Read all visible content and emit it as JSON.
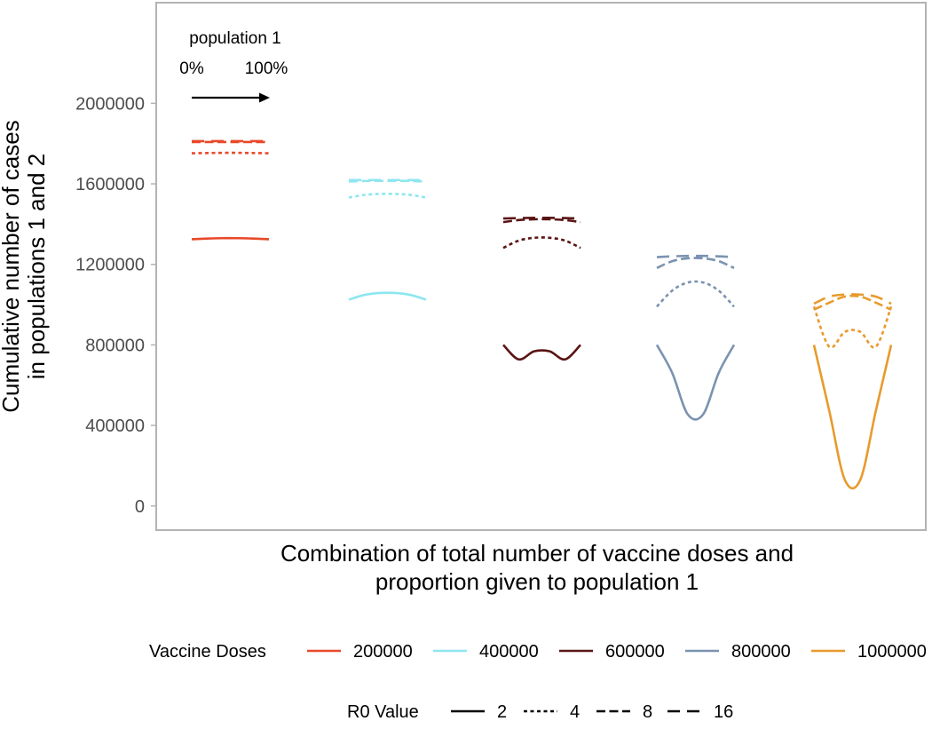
{
  "chart_data": {
    "type": "line",
    "title": "",
    "xlabel_line1": "Combination of total number of vaccine doses and",
    "xlabel_line2": "proportion given to population 1",
    "ylabel_line1": "Cumulative number of cases",
    "ylabel_line2": "in populations 1 and 2",
    "ylim": [
      -120000,
      2500000
    ],
    "yticks": [
      0,
      400000,
      800000,
      1200000,
      1600000,
      2000000
    ],
    "ytick_labels": [
      "0",
      "400000",
      "800000",
      "1200000",
      "1600000",
      "2000000"
    ],
    "grid": false,
    "x_proportion_range": [
      0,
      1
    ],
    "annotation": {
      "title": "population 1",
      "left_label": "0%",
      "right_label": "100%"
    },
    "legend_position": "bottom",
    "legend_color_title": "Vaccine Doses",
    "legend_linetype_title": "R0 Value",
    "r0_values": [
      "2",
      "4",
      "8",
      "16"
    ],
    "groups": [
      {
        "doses": "200000",
        "color": "#E8492A",
        "curves": [
          {
            "r0": "2",
            "y": [
              1325000,
              1328000,
              1330000,
              1330000,
              1328000,
              1325000
            ]
          },
          {
            "r0": "4",
            "y": [
              1752000,
              1753000,
              1754000,
              1754000,
              1753000,
              1752000
            ]
          },
          {
            "r0": "8",
            "y": [
              1808000,
              1808000,
              1808000,
              1808000,
              1808000,
              1808000
            ]
          },
          {
            "r0": "16",
            "y": [
              1812000,
              1812000,
              1812000,
              1812000,
              1812000,
              1812000
            ]
          }
        ]
      },
      {
        "doses": "400000",
        "color": "#8EE6F0",
        "curves": [
          {
            "r0": "2",
            "y": [
              1025000,
              1048000,
              1058000,
              1058000,
              1048000,
              1025000
            ]
          },
          {
            "r0": "4",
            "y": [
              1532000,
              1545000,
              1550000,
              1550000,
              1545000,
              1532000
            ]
          },
          {
            "r0": "8",
            "y": [
              1612000,
              1614000,
              1615000,
              1615000,
              1614000,
              1612000
            ]
          },
          {
            "r0": "16",
            "y": [
              1619000,
              1619000,
              1619000,
              1619000,
              1619000,
              1619000
            ]
          }
        ]
      },
      {
        "doses": "600000",
        "color": "#5A1414",
        "curves": [
          {
            "r0": "2",
            "y": [
              800000,
              728000,
              768000,
              768000,
              728000,
              800000
            ]
          },
          {
            "r0": "4",
            "y": [
              1282000,
              1318000,
              1332000,
              1332000,
              1318000,
              1282000
            ]
          },
          {
            "r0": "8",
            "y": [
              1410000,
              1420000,
              1424000,
              1424000,
              1420000,
              1410000
            ]
          },
          {
            "r0": "16",
            "y": [
              1428000,
              1430000,
              1431000,
              1431000,
              1430000,
              1428000
            ]
          }
        ]
      },
      {
        "doses": "800000",
        "color": "#7B93B0",
        "curves": [
          {
            "r0": "2",
            "y": [
              800000,
              660000,
              455000,
              455000,
              660000,
              800000
            ]
          },
          {
            "r0": "4",
            "y": [
              990000,
              1070000,
              1110000,
              1110000,
              1070000,
              990000
            ]
          },
          {
            "r0": "8",
            "y": [
              1182000,
              1216000,
              1230000,
              1230000,
              1216000,
              1182000
            ]
          },
          {
            "r0": "16",
            "y": [
              1236000,
              1240000,
              1242000,
              1242000,
              1240000,
              1236000
            ]
          }
        ]
      },
      {
        "doses": "1000000",
        "color": "#E89A2C",
        "curves": [
          {
            "r0": "2",
            "y": [
              800000,
              470000,
              130000,
              130000,
              470000,
              800000
            ]
          },
          {
            "r0": "4",
            "y": [
              990000,
              790000,
              865000,
              865000,
              790000,
              990000
            ]
          },
          {
            "r0": "8",
            "y": [
              975000,
              1010000,
              1040000,
              1040000,
              1010000,
              975000
            ]
          },
          {
            "r0": "16",
            "y": [
              1005000,
              1040000,
              1050000,
              1050000,
              1040000,
              1005000
            ]
          }
        ]
      }
    ]
  }
}
